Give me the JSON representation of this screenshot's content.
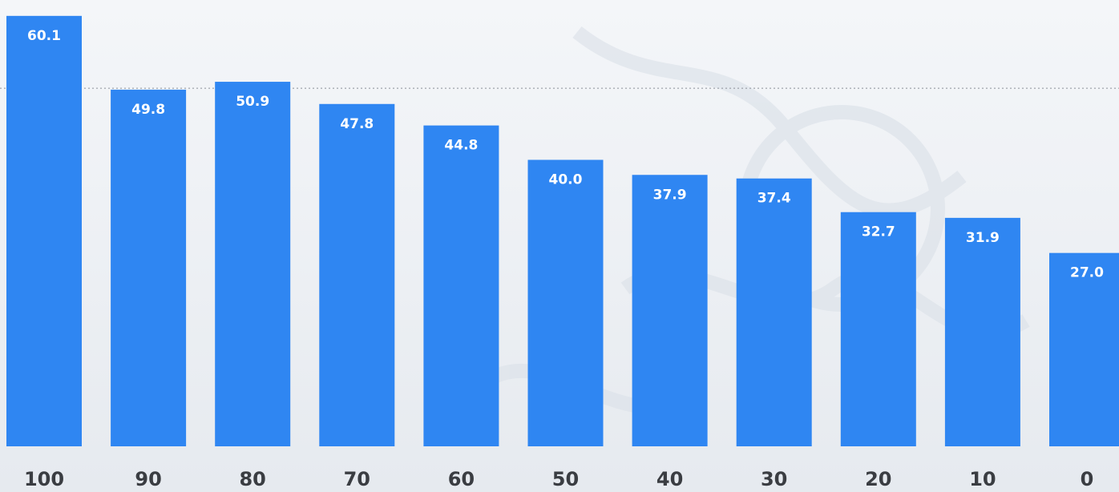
{
  "chart_data": {
    "type": "bar",
    "categories": [
      "100",
      "90",
      "80",
      "70",
      "60",
      "50",
      "40",
      "30",
      "20",
      "10",
      "0"
    ],
    "values": [
      60.1,
      49.8,
      50.9,
      47.8,
      44.8,
      40.0,
      37.9,
      37.4,
      32.7,
      31.9,
      27.0
    ],
    "value_labels": [
      "60.1",
      "49.8",
      "50.9",
      "47.8",
      "44.8",
      "40.0",
      "37.9",
      "37.4",
      "32.7",
      "31.9",
      "27.0"
    ],
    "title": "",
    "xlabel": "",
    "ylabel": "",
    "ylim": [
      0,
      61.2
    ],
    "reference_line": 50,
    "grid": false,
    "legend": "none",
    "colors": {
      "bar": "#2f86f2",
      "bar_label": "#ffffff",
      "tick_label": "#3a3d42",
      "reference_line": "#8a8f98",
      "background": "#eef1f5"
    }
  }
}
